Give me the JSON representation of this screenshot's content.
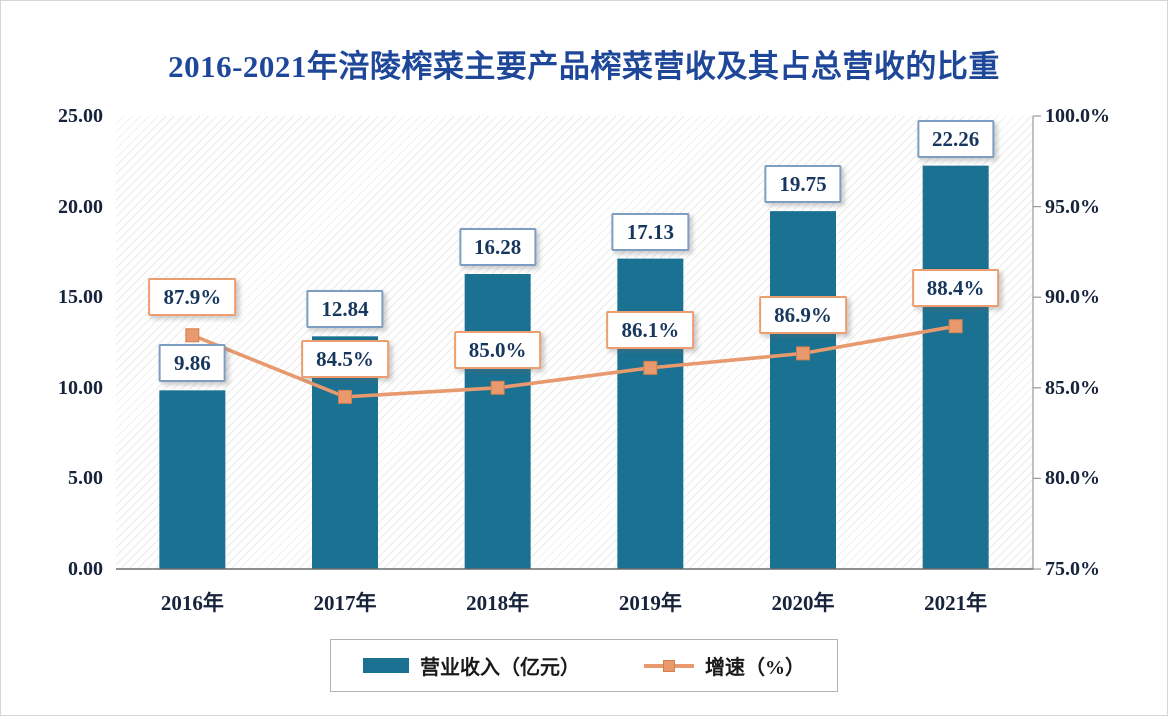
{
  "chart_data": {
    "type": "combo",
    "title": "2016-2021年涪陵榨菜主要产品榨菜营收及其占总营收的比重",
    "categories": [
      "2016年",
      "2017年",
      "2018年",
      "2019年",
      "2020年",
      "2021年"
    ],
    "series": [
      {
        "name": "营业收入（亿元）",
        "type": "bar",
        "axis": "left",
        "values": [
          9.86,
          12.84,
          16.28,
          17.13,
          19.75,
          22.26
        ],
        "labels": [
          "9.86",
          "12.84",
          "16.28",
          "17.13",
          "19.75",
          "22.26"
        ]
      },
      {
        "name": "增速（%）",
        "type": "line",
        "axis": "right",
        "values": [
          87.9,
          84.5,
          85.0,
          86.1,
          86.9,
          88.4
        ],
        "labels": [
          "87.9%",
          "84.5%",
          "85.0%",
          "86.1%",
          "86.9%",
          "88.4%"
        ]
      }
    ],
    "left_axis": {
      "min": 0,
      "max": 25,
      "ticks": [
        "25.00",
        "20.00",
        "15.00",
        "10.00",
        "5.00",
        "0.00"
      ]
    },
    "right_axis": {
      "min": 75,
      "max": 100,
      "ticks": [
        "100.0%",
        "95.0%",
        "90.0%",
        "85.0%",
        "80.0%",
        "75.0%"
      ]
    },
    "legend": [
      "营业收入（亿元）",
      "增速（%）"
    ],
    "grid": "hatched-background, no gridlines",
    "legend_position": "bottom-center",
    "colors": {
      "bar": "#1a7191",
      "line": "#e8996e",
      "line_marker_border": "#d2804e",
      "title_text": "#1e4799",
      "bar_label_border": "#7d9ec0",
      "line_label_border": "#ed9e6f",
      "label_text": "#17375e",
      "axis_text": "#16233b"
    }
  }
}
